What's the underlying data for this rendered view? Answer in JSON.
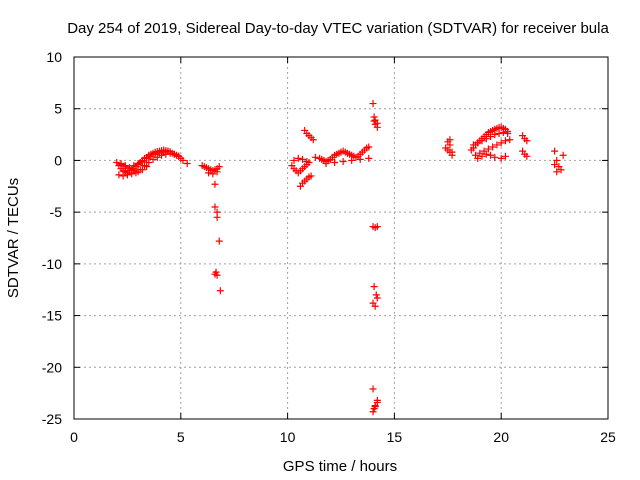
{
  "chart_data": {
    "type": "scatter",
    "title": "Day 254 of 2019, Sidereal Day-to-day VTEC variation (SDTVAR) for receiver bula",
    "xlabel": "GPS time / hours",
    "ylabel": "SDTVAR / TECUs",
    "xlim": [
      0,
      25
    ],
    "ylim": [
      -25,
      10
    ],
    "xticks": [
      0,
      5,
      10,
      15,
      20,
      25
    ],
    "yticks": [
      10,
      5,
      0,
      -5,
      -10,
      -15,
      -20,
      -25
    ],
    "grid": true,
    "marker": "+",
    "series": [
      {
        "name": "SDTVAR",
        "color": "#ff0000",
        "x": [
          2.1,
          2.2,
          2.3,
          2.4,
          2.5,
          2.6,
          2.7,
          2.8,
          2.9,
          3.0,
          3.1,
          3.2,
          3.3,
          3.4,
          3.5,
          3.6,
          3.7,
          3.8,
          3.9,
          4.0,
          4.1,
          4.2,
          4.3,
          4.4,
          4.5,
          4.6,
          4.7,
          4.8,
          4.9,
          5.0,
          5.1,
          5.3,
          2.1,
          2.3,
          2.5,
          2.7,
          2.9,
          3.1,
          3.3,
          3.5,
          3.7,
          3.9,
          4.1,
          4.3,
          4.5,
          4.7,
          4.9,
          2.2,
          2.4,
          2.6,
          2.8,
          3.0,
          3.2,
          3.4,
          3.6,
          3.8,
          4.0,
          4.2,
          4.4,
          2.0,
          2.2,
          2.4,
          2.6,
          2.8,
          3.0,
          3.2,
          3.4,
          6.0,
          6.1,
          6.2,
          6.3,
          6.4,
          6.5,
          6.6,
          6.7,
          6.8,
          6.3,
          6.5,
          6.7,
          6.6,
          6.6,
          6.7,
          6.7,
          6.6,
          6.65,
          6.7,
          6.85,
          6.8,
          10.2,
          10.3,
          10.4,
          10.5,
          10.6,
          10.7,
          10.8,
          10.9,
          11.0,
          10.3,
          10.5,
          10.7,
          10.9,
          10.6,
          10.7,
          10.8,
          10.9,
          11.0,
          11.1,
          10.8,
          10.9,
          11.0,
          11.1,
          11.2,
          11.3,
          11.5,
          11.6,
          11.7,
          11.8,
          11.9,
          12.0,
          12.1,
          12.2,
          12.3,
          12.4,
          12.5,
          12.6,
          12.7,
          12.8,
          12.9,
          13.0,
          13.1,
          13.2,
          13.3,
          13.4,
          13.5,
          13.6,
          13.7,
          13.8,
          11.8,
          12.2,
          12.6,
          13.0,
          13.4,
          13.8,
          14.0,
          14.05,
          14.1,
          14.2,
          14.05,
          14.1,
          14.2,
          14.0,
          14.1,
          14.2,
          14.05,
          14.15,
          14.2,
          14.0,
          14.1,
          14.0,
          14.05,
          14.1,
          14.2,
          14.0,
          14.1,
          14.2,
          17.4,
          17.5,
          17.6,
          17.7,
          17.5,
          17.6,
          17.7,
          17.6,
          18.6,
          18.7,
          18.8,
          18.9,
          19.0,
          19.1,
          19.2,
          19.3,
          19.4,
          19.5,
          19.6,
          19.7,
          19.8,
          19.9,
          20.0,
          20.1,
          20.2,
          20.3,
          18.8,
          19.0,
          19.2,
          19.4,
          19.6,
          19.8,
          20.0,
          20.2,
          20.4,
          18.7,
          18.9,
          19.1,
          19.3,
          19.5,
          19.7,
          19.9,
          20.1,
          20.3,
          18.9,
          19.1,
          19.3,
          19.5,
          19.7,
          20.0,
          20.2,
          21.0,
          21.1,
          21.2,
          21.0,
          21.1,
          21.2,
          22.5,
          22.6,
          22.7,
          22.9,
          22.5,
          22.6,
          22.8
        ],
        "y": [
          -0.5,
          -0.8,
          -1.0,
          -1.1,
          -1.2,
          -1.0,
          -0.9,
          -0.8,
          -0.6,
          -0.4,
          -0.2,
          0.0,
          0.2,
          0.3,
          0.5,
          0.6,
          0.7,
          0.8,
          0.85,
          0.9,
          0.95,
          1.0,
          0.95,
          0.9,
          0.85,
          0.7,
          0.6,
          0.5,
          0.4,
          0.2,
          0.0,
          -0.3,
          -1.4,
          -1.5,
          -1.4,
          -1.3,
          -1.2,
          -0.9,
          -0.5,
          -0.2,
          0.1,
          0.3,
          0.5,
          0.6,
          0.7,
          0.6,
          0.4,
          -0.3,
          -0.5,
          -0.7,
          -0.5,
          -0.3,
          -0.1,
          0.2,
          0.4,
          0.6,
          0.7,
          0.8,
          0.9,
          -0.2,
          -0.4,
          -0.6,
          -0.8,
          -1.0,
          -1.1,
          -0.9,
          -0.6,
          -0.5,
          -0.6,
          -0.7,
          -0.8,
          -0.9,
          -1.0,
          -0.9,
          -0.8,
          -0.6,
          -1.2,
          -1.3,
          -1.1,
          -2.3,
          -4.5,
          -5.0,
          -5.5,
          -11.0,
          -10.8,
          -11.1,
          -12.6,
          -7.8,
          -0.5,
          -0.8,
          -1.0,
          -1.2,
          -1.0,
          -0.8,
          -0.6,
          -0.4,
          -0.2,
          0.0,
          0.2,
          0.1,
          -0.1,
          -2.5,
          -2.2,
          -2.0,
          -1.8,
          -1.6,
          -1.5,
          2.9,
          2.6,
          2.4,
          2.2,
          2.0,
          0.3,
          0.2,
          0.1,
          0.0,
          -0.1,
          0.0,
          0.1,
          0.3,
          0.5,
          0.6,
          0.7,
          0.8,
          0.9,
          0.8,
          0.7,
          0.6,
          0.5,
          0.4,
          0.3,
          0.4,
          0.6,
          0.8,
          1.0,
          1.2,
          1.3,
          -0.3,
          -0.2,
          -0.1,
          0.0,
          0.1,
          0.2,
          5.5,
          3.8,
          3.5,
          3.2,
          4.2,
          3.9,
          3.6,
          -6.4,
          -6.5,
          -6.4,
          -12.2,
          -13.0,
          -13.3,
          -13.8,
          -14.1,
          -22.1,
          -24.0,
          -23.7,
          -23.2,
          -24.3,
          -23.8,
          -23.4,
          1.2,
          1.0,
          0.8,
          0.5,
          1.8,
          1.5,
          0.8,
          2.0,
          1.0,
          1.2,
          1.5,
          1.7,
          1.9,
          2.1,
          2.3,
          2.5,
          2.7,
          2.8,
          2.9,
          3.0,
          3.1,
          3.2,
          3.2,
          3.1,
          3.0,
          2.8,
          0.5,
          0.7,
          0.9,
          1.1,
          1.3,
          1.5,
          1.7,
          1.9,
          2.0,
          1.5,
          1.7,
          1.9,
          2.1,
          2.3,
          2.5,
          2.6,
          2.7,
          2.6,
          0.2,
          0.4,
          0.6,
          0.5,
          0.3,
          0.2,
          0.4,
          2.4,
          2.1,
          1.9,
          0.9,
          0.6,
          0.4,
          0.9,
          0.0,
          -0.6,
          0.5,
          -0.4,
          -1.1,
          -0.9
        ]
      }
    ]
  }
}
